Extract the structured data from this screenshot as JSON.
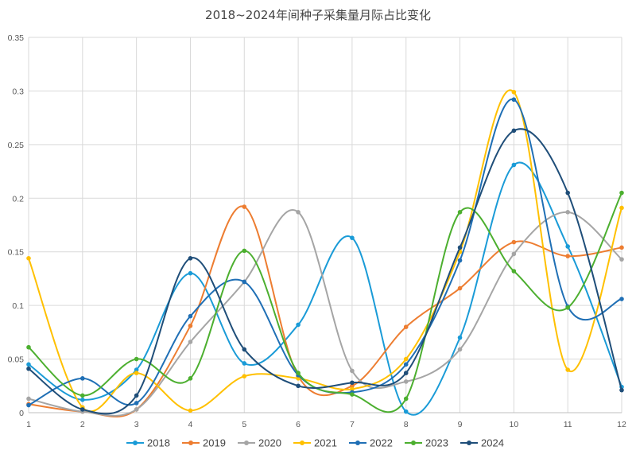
{
  "chart_data": {
    "type": "line",
    "title": "2018~2024年间种子采集量月际占比变化",
    "xlabel": "",
    "ylabel": "",
    "categories": [
      "1",
      "2",
      "3",
      "4",
      "5",
      "6",
      "7",
      "8",
      "9",
      "10",
      "11",
      "12"
    ],
    "ylim": [
      0,
      0.35
    ],
    "yticks": [
      0,
      0.05,
      0.1,
      0.15,
      0.2,
      0.25,
      0.3,
      0.35
    ],
    "ytick_labels": [
      "0",
      "0.05",
      "0.1",
      "0.15",
      "0.2",
      "0.25",
      "0.3",
      "0.35"
    ],
    "grid": true,
    "smooth": true,
    "legend_position": "bottom",
    "series": [
      {
        "name": "2018",
        "color": "#1a9bd7",
        "values": [
          0.045,
          0.012,
          0.04,
          0.13,
          0.046,
          0.082,
          0.163,
          0.001,
          0.07,
          0.231,
          0.155,
          0.024
        ]
      },
      {
        "name": "2019",
        "color": "#ed7d31",
        "values": [
          0.008,
          0.001,
          0.003,
          0.081,
          0.192,
          0.034,
          0.025,
          0.08,
          0.116,
          0.159,
          0.146,
          0.154
        ]
      },
      {
        "name": "2020",
        "color": "#a5a5a5",
        "values": [
          0.013,
          0.001,
          0.003,
          0.066,
          0.122,
          0.187,
          0.039,
          0.029,
          0.059,
          0.148,
          0.187,
          0.143
        ]
      },
      {
        "name": "2021",
        "color": "#ffc000",
        "values": [
          0.144,
          0.005,
          0.037,
          0.002,
          0.034,
          0.032,
          0.022,
          0.05,
          0.15,
          0.299,
          0.04,
          0.191
        ]
      },
      {
        "name": "2022",
        "color": "#1f6fb5",
        "values": [
          0.007,
          0.032,
          0.009,
          0.09,
          0.122,
          0.035,
          0.019,
          0.045,
          0.142,
          0.292,
          0.099,
          0.106
        ]
      },
      {
        "name": "2023",
        "color": "#4caf2f",
        "values": [
          0.061,
          0.016,
          0.05,
          0.032,
          0.151,
          0.037,
          0.017,
          0.013,
          0.187,
          0.132,
          0.098,
          0.205
        ]
      },
      {
        "name": "2024",
        "color": "#1f4e79",
        "values": [
          0.041,
          0.003,
          0.016,
          0.144,
          0.059,
          0.025,
          0.028,
          0.037,
          0.154,
          0.263,
          0.205,
          0.021
        ]
      }
    ]
  }
}
